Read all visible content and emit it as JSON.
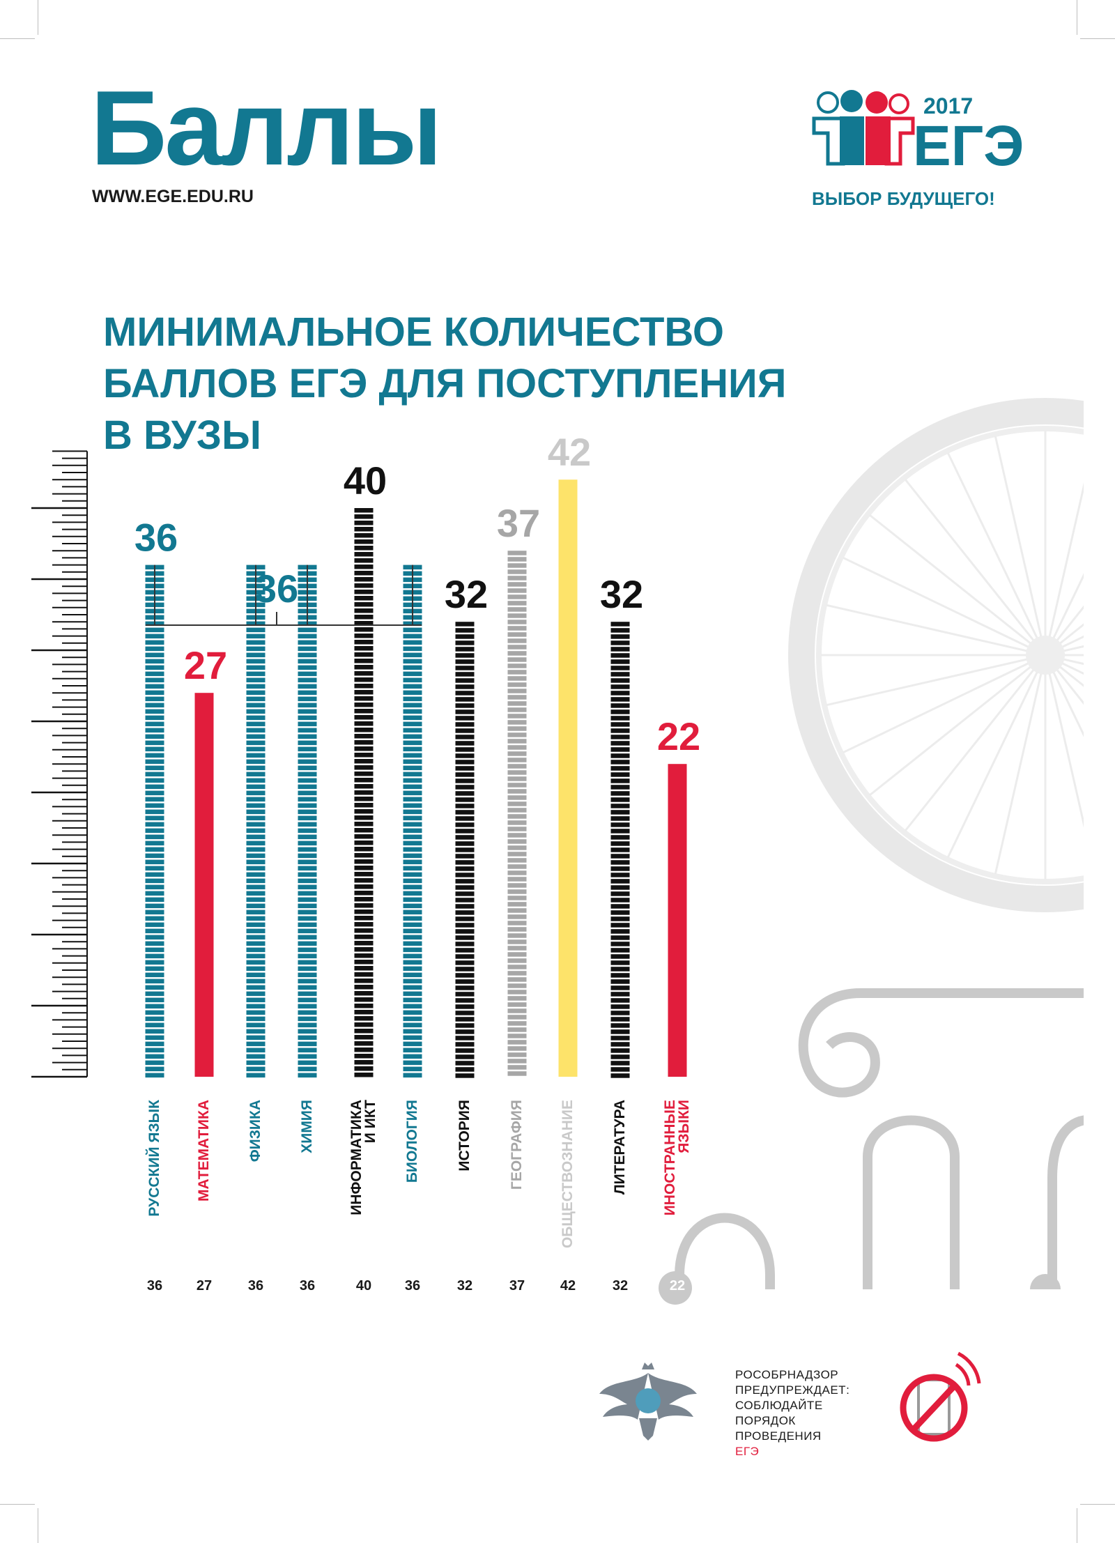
{
  "header": {
    "title": "Баллы",
    "website": "WWW.EGE.EDU.RU",
    "logo_year": "2017",
    "logo_text": "ЕГЭ",
    "slogan": "ВЫБОР БУДУЩЕГО!"
  },
  "headline": [
    "МИНИМАЛЬНОЕ КОЛИЧЕСТВО",
    "БАЛЛОВ ЕГЭ ДЛЯ ПОСТУПЛЕНИЯ",
    "В ВУЗЫ"
  ],
  "colors": {
    "teal": "#127891",
    "red": "#e11d3c",
    "black": "#111111",
    "gray": "#a6a6a6",
    "yellow": "#fde36a",
    "lightgray": "#c9c9c9"
  },
  "chart_data": {
    "type": "bar",
    "title": "МИНИМАЛЬНОЕ КОЛИЧЕСТВО БАЛЛОВ ЕГЭ ДЛЯ ПОСТУПЛЕНИЯ В ВУЗЫ",
    "xlabel": "",
    "ylabel": "",
    "ylim": [
      0,
      45
    ],
    "categories": [
      "РУССКИЙ ЯЗЫК",
      "МАТЕМАТИКА",
      "ФИЗИКА",
      "ХИМИЯ",
      "ИНФОРМАТИКА И ИКТ",
      "БИОЛОГИЯ",
      "ИСТОРИЯ",
      "ГЕОГРАФИЯ",
      "ОБЩЕСТВОЗНАНИЕ",
      "ЛИТЕРАТУРА",
      "ИНОСТРАННЫЕ ЯЗЫКИ"
    ],
    "values": [
      36,
      27,
      36,
      36,
      40,
      36,
      32,
      37,
      42,
      32,
      22
    ],
    "bar_colors": [
      "#127891",
      "#e11d3c",
      "#127891",
      "#127891",
      "#111111",
      "#127891",
      "#111111",
      "#a6a6a6",
      "#fde36a",
      "#111111",
      "#e11d3c"
    ],
    "label_colors": [
      "#127891",
      "#e11d3c",
      "#127891",
      "#127891",
      "#111111",
      "#127891",
      "#111111",
      "#a6a6a6",
      "#c9c9c9",
      "#111111",
      "#e11d3c"
    ],
    "bar_styles": [
      "striped",
      "solid",
      "striped",
      "striped",
      "striped",
      "striped",
      "striped",
      "striped",
      "solid",
      "striped",
      "solid"
    ],
    "bar_value_labels": [
      "36",
      "27",
      "",
      "",
      "40",
      "",
      "32",
      "37",
      "42",
      "32",
      "22"
    ],
    "group_label": "36",
    "footer_values": [
      "36",
      "27",
      "36",
      "36",
      "40",
      "36",
      "32",
      "37",
      "42",
      "32",
      "22"
    ]
  },
  "footer": {
    "warning": [
      "РОСОБРНАДЗОР",
      "ПРЕДУПРЕЖДАЕТ:",
      "СОБЛЮДАЙТЕ",
      "ПОРЯДОК",
      "ПРОВЕДЕНИЯ"
    ],
    "warning_last": "ЕГЭ",
    "icons": [
      "rosobrnadzor-emblem-icon",
      "no-phone-icon"
    ]
  }
}
